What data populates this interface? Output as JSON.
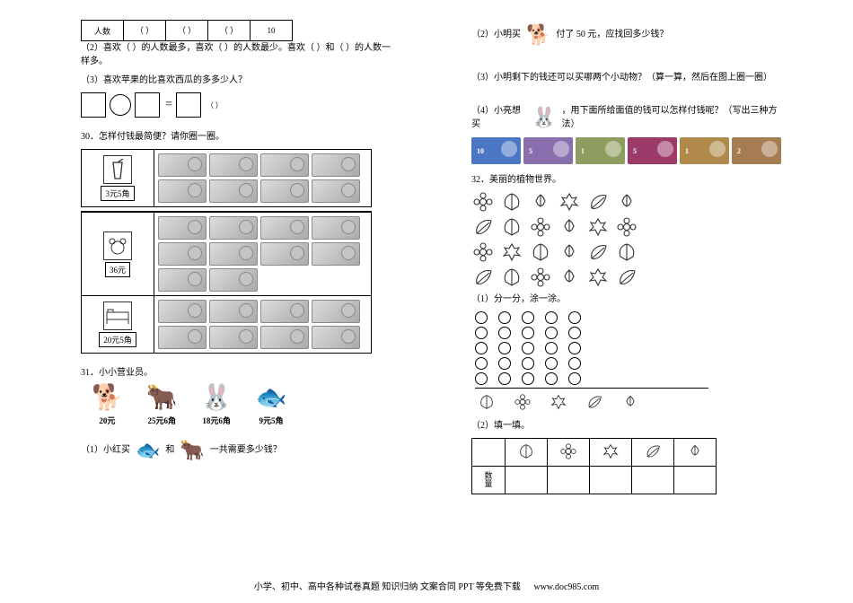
{
  "q29": {
    "row_header": "人数",
    "cells": [
      "（    ）",
      "（   ）",
      "（    ）",
      "10"
    ],
    "sub2": "（2）喜欢（   ）的人数最多，喜欢（   ）的人数最少。喜欢（   ）和（   ）的人数一样多。",
    "sub3": "（3）喜欢苹果的比喜欢西瓜的多多少人？",
    "unit": "（  ）"
  },
  "q30": {
    "title": "30．怎样付钱最简便？请你圈一圈。",
    "blocks": [
      {
        "item": "juice",
        "price": "3元5角",
        "note_count": 8
      },
      {
        "item": "bear",
        "price": "36元",
        "note_count": 10
      },
      {
        "item": "bed",
        "price": "20元5角",
        "note_count": 8
      }
    ]
  },
  "q31": {
    "title": "31．小小营业员。",
    "items": [
      {
        "name": "dog",
        "price": "20元",
        "color": "#d17a2b"
      },
      {
        "name": "bull",
        "price": "25元6角",
        "color": "#5a3c22"
      },
      {
        "name": "rabbit",
        "price": "18元6角",
        "color": "#ffffff"
      },
      {
        "name": "fish",
        "price": "9元5角",
        "color": "#29b2c6"
      }
    ],
    "sub1a": "（1）小红买",
    "sub1b": "和",
    "sub1c": "一共需要多少钱？",
    "sub2a": "（2）小明买",
    "sub2b": "付了 50 元，应找回多少钱？",
    "sub3": "（3）小明剩下的钱还可以买哪两个小动物？（算一算，然后在图上圈一圈）",
    "sub4a": "（4）小亮想买",
    "sub4b": "，用下面所给面值的钱可以怎样付钱呢？（写出三种方法）",
    "bills": [
      {
        "label": "10",
        "bg": "#4a76c4"
      },
      {
        "label": "5",
        "bg": "#8a6fae"
      },
      {
        "label": "1",
        "bg": "#8f9c5f"
      },
      {
        "label": "5",
        "bg": "#9c3b6a"
      },
      {
        "label": "1",
        "bg": "#b08a4a"
      },
      {
        "label": "2",
        "bg": "#a67c52"
      }
    ]
  },
  "q32": {
    "title": "32．美丽的植物世界。",
    "plants": [
      "ginkgo",
      "flower",
      "maple",
      "leaf",
      "rose"
    ],
    "grid_rows": 4,
    "grid_cols": 6,
    "grid": [
      [
        "flower",
        "ginkgo",
        "rose",
        "maple",
        "leaf",
        "rose"
      ],
      [
        "leaf",
        "ginkgo",
        "flower",
        "rose",
        "maple",
        "flower"
      ],
      [
        "flower",
        "maple",
        "ginkgo",
        "rose",
        "leaf",
        "ginkgo"
      ],
      [
        "leaf",
        "ginkgo",
        "flower",
        "rose",
        "maple",
        "leaf"
      ]
    ],
    "sub1": "（1）分一分，涂一涂。",
    "tally_heights": [
      5,
      5,
      5,
      5,
      5
    ],
    "sub2": "（2）填一填。",
    "tbl_row1": "数",
    "tbl_row2": "量"
  },
  "footer": {
    "text": "小学、初中、高中各种试卷真题 知识归纳 文案合同 PPT 等免费下载",
    "url": "www.doc985.com"
  },
  "colors": {
    "text": "#000000",
    "bg": "#ffffff",
    "note_light": "#dcdcdc",
    "note_dark": "#aaaaaa"
  }
}
